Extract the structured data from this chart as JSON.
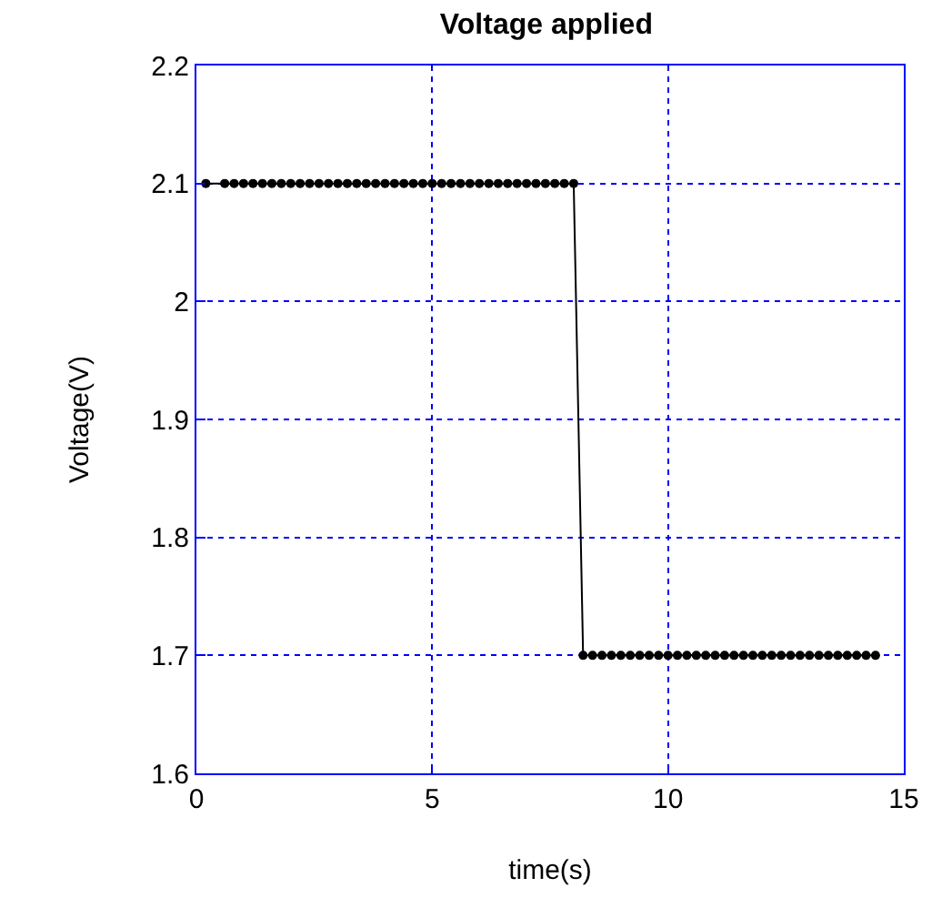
{
  "chart_data": {
    "type": "line",
    "title": "Voltage applied",
    "xlabel": "time(s)",
    "ylabel": "Voltage(V)",
    "x": [
      0.2,
      0.6,
      0.8,
      1.0,
      1.2,
      1.4,
      1.6,
      1.8,
      2.0,
      2.2,
      2.4,
      2.6,
      2.8,
      3.0,
      3.2,
      3.4,
      3.6,
      3.8,
      4.0,
      4.2,
      4.4,
      4.6,
      4.8,
      5.0,
      5.2,
      5.4,
      5.6,
      5.8,
      6.0,
      6.2,
      6.4,
      6.6,
      6.8,
      7.0,
      7.2,
      7.4,
      7.6,
      7.8,
      8.0,
      8.2,
      8.4,
      8.6,
      8.8,
      9.0,
      9.2,
      9.4,
      9.6,
      9.8,
      10.0,
      10.2,
      10.4,
      10.6,
      10.8,
      11.0,
      11.2,
      11.4,
      11.6,
      11.8,
      12.0,
      12.2,
      12.4,
      12.6,
      12.8,
      13.0,
      13.2,
      13.4,
      13.6,
      13.8,
      14.0,
      14.2,
      14.4
    ],
    "series": [
      {
        "color": "#000000",
        "values": [
          2.1,
          2.1,
          2.1,
          2.1,
          2.1,
          2.1,
          2.1,
          2.1,
          2.1,
          2.1,
          2.1,
          2.1,
          2.1,
          2.1,
          2.1,
          2.1,
          2.1,
          2.1,
          2.1,
          2.1,
          2.1,
          2.1,
          2.1,
          2.1,
          2.1,
          2.1,
          2.1,
          2.1,
          2.1,
          2.1,
          2.1,
          2.1,
          2.1,
          2.1,
          2.1,
          2.1,
          2.1,
          2.1,
          2.1,
          1.7,
          1.7,
          1.7,
          1.7,
          1.7,
          1.7,
          1.7,
          1.7,
          1.7,
          1.7,
          1.7,
          1.7,
          1.7,
          1.7,
          1.7,
          1.7,
          1.7,
          1.7,
          1.7,
          1.7,
          1.7,
          1.7,
          1.7,
          1.7,
          1.7,
          1.7,
          1.7,
          1.7,
          1.7,
          1.7,
          1.7,
          1.7
        ]
      }
    ],
    "xlim": [
      0,
      15
    ],
    "xticks": [
      0,
      5,
      10,
      15
    ],
    "ylim": [
      1.6,
      2.2
    ],
    "yticks": [
      1.6,
      1.7,
      1.8,
      1.9,
      2,
      2.1,
      2.2
    ],
    "grid": true,
    "marker": "circle",
    "line_style": "solid"
  }
}
